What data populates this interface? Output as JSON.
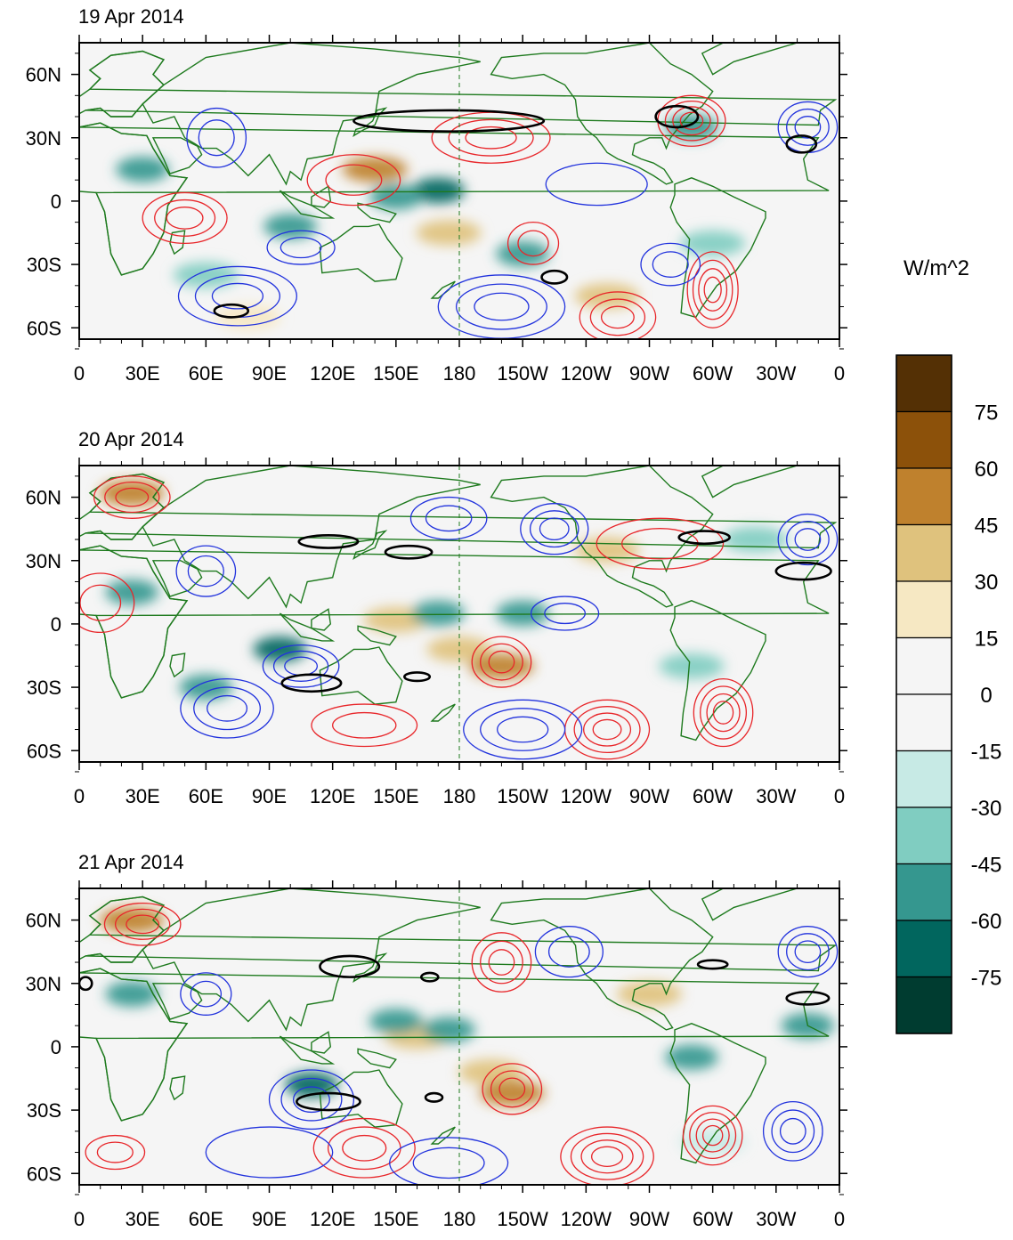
{
  "figure": {
    "units": "W/m^2",
    "x_ticks": [
      "0",
      "30E",
      "60E",
      "90E",
      "120E",
      "150E",
      "180",
      "150W",
      "120W",
      "90W",
      "60W",
      "30W",
      "0"
    ],
    "y_ticks": [
      "60N",
      "30N",
      "0",
      "30S",
      "60S"
    ],
    "panels": [
      {
        "title": "19 Apr 2014"
      },
      {
        "title": "20 Apr 2014"
      },
      {
        "title": "21 Apr 2014"
      }
    ],
    "colorbar": {
      "labels": [
        "75",
        "60",
        "45",
        "30",
        "15",
        "0",
        "-15",
        "-30",
        "-45",
        "-60",
        "-75"
      ],
      "colors": [
        "#543005",
        "#8c510a",
        "#bf812d",
        "#dfc27d",
        "#f6e8c3",
        "#f5f5f5",
        "#f5f5f5",
        "#c7eae5",
        "#80cdc1",
        "#35978f",
        "#01665e",
        "#003c30"
      ]
    },
    "style": {
      "coast_color": "#1e7a1e",
      "positive_contour": "#e8262a",
      "negative_contour": "#2233dd",
      "threshold_contour": "#000000"
    }
  },
  "chart_data": {
    "type": "heatmap",
    "variable": "anomaly field with contour overlays",
    "units": "W/m^2",
    "x_axis": {
      "range": [
        0,
        360
      ],
      "ticks": [
        "0",
        "30E",
        "60E",
        "90E",
        "120E",
        "150E",
        "180",
        "150W",
        "120W",
        "90W",
        "60W",
        "30W",
        "0"
      ]
    },
    "y_axis": {
      "range": [
        -75,
        75
      ],
      "ticks": [
        "60N",
        "30N",
        "0",
        "30S",
        "60S"
      ]
    },
    "levels": [
      -75,
      -60,
      -45,
      -30,
      -15,
      0,
      15,
      30,
      45,
      60,
      75
    ],
    "panels": [
      {
        "title": "19 Apr 2014",
        "shading": [
          {
            "lon": 140,
            "lat": 15,
            "val": 45
          },
          {
            "lon": 170,
            "lat": 5,
            "val": -75
          },
          {
            "lon": 150,
            "lat": 2,
            "val": -60
          },
          {
            "lon": 100,
            "lat": -12,
            "val": -60
          },
          {
            "lon": 30,
            "lat": 15,
            "val": -60
          },
          {
            "lon": 175,
            "lat": -15,
            "val": 30
          },
          {
            "lon": 210,
            "lat": -25,
            "val": -60
          },
          {
            "lon": 300,
            "lat": -20,
            "val": -45
          },
          {
            "lon": 290,
            "lat": 35,
            "val": -60
          },
          {
            "lon": 60,
            "lat": -35,
            "val": -45
          },
          {
            "lon": 250,
            "lat": -45,
            "val": 30
          },
          {
            "lon": 80,
            "lat": -55,
            "val": 20
          }
        ],
        "contours": [
          {
            "sign": "pos",
            "lon": 195,
            "lat": 30,
            "rx": 28,
            "ry": 12,
            "n": 3
          },
          {
            "sign": "pos",
            "lon": 290,
            "lat": 38,
            "rx": 16,
            "ry": 12,
            "n": 4
          },
          {
            "sign": "pos",
            "lon": 300,
            "lat": -42,
            "rx": 12,
            "ry": 18,
            "n": 4
          },
          {
            "sign": "pos",
            "lon": 215,
            "lat": -20,
            "rx": 12,
            "ry": 10,
            "n": 2
          },
          {
            "sign": "pos",
            "lon": 255,
            "lat": -55,
            "rx": 18,
            "ry": 12,
            "n": 3
          },
          {
            "sign": "pos",
            "lon": 50,
            "lat": -8,
            "rx": 20,
            "ry": 12,
            "n": 3
          },
          {
            "sign": "pos",
            "lon": 130,
            "lat": 10,
            "rx": 22,
            "ry": 12,
            "n": 2
          },
          {
            "sign": "neg",
            "lon": 75,
            "lat": -45,
            "rx": 28,
            "ry": 14,
            "n": 3
          },
          {
            "sign": "neg",
            "lon": 200,
            "lat": -50,
            "rx": 30,
            "ry": 15,
            "n": 3
          },
          {
            "sign": "neg",
            "lon": 280,
            "lat": -30,
            "rx": 14,
            "ry": 10,
            "n": 2
          },
          {
            "sign": "neg",
            "lon": 65,
            "lat": 30,
            "rx": 14,
            "ry": 14,
            "n": 2
          },
          {
            "sign": "neg",
            "lon": 345,
            "lat": 35,
            "rx": 14,
            "ry": 12,
            "n": 3
          },
          {
            "sign": "neg",
            "lon": 245,
            "lat": 8,
            "rx": 24,
            "ry": 10,
            "n": 1
          },
          {
            "sign": "neg",
            "lon": 105,
            "lat": -22,
            "rx": 16,
            "ry": 8,
            "n": 2
          }
        ],
        "threshold_contours": [
          {
            "lon": 175,
            "lat": 38,
            "rx": 45,
            "ry": 5
          },
          {
            "lon": 283,
            "lat": 40,
            "rx": 10,
            "ry": 5
          },
          {
            "lon": 342,
            "lat": 27,
            "rx": 7,
            "ry": 4
          },
          {
            "lon": 72,
            "lat": -52,
            "rx": 8,
            "ry": 3
          },
          {
            "lon": 225,
            "lat": -36,
            "rx": 6,
            "ry": 3
          }
        ]
      },
      {
        "title": "20 Apr 2014",
        "shading": [
          {
            "lon": 180,
            "lat": -12,
            "val": 30
          },
          {
            "lon": 200,
            "lat": -20,
            "val": 45
          },
          {
            "lon": 150,
            "lat": 2,
            "val": 30
          },
          {
            "lon": 170,
            "lat": 5,
            "val": -60
          },
          {
            "lon": 210,
            "lat": 5,
            "val": -60
          },
          {
            "lon": 95,
            "lat": -12,
            "val": -75
          },
          {
            "lon": 25,
            "lat": 15,
            "val": -60
          },
          {
            "lon": 290,
            "lat": -20,
            "val": -45
          },
          {
            "lon": 320,
            "lat": 40,
            "val": -45
          },
          {
            "lon": 60,
            "lat": -30,
            "val": -60
          },
          {
            "lon": 25,
            "lat": 62,
            "val": 45
          },
          {
            "lon": 250,
            "lat": 35,
            "val": 30
          }
        ],
        "contours": [
          {
            "sign": "pos",
            "lon": 25,
            "lat": 60,
            "rx": 18,
            "ry": 10,
            "n": 3
          },
          {
            "sign": "pos",
            "lon": 200,
            "lat": -18,
            "rx": 14,
            "ry": 12,
            "n": 3
          },
          {
            "sign": "pos",
            "lon": 250,
            "lat": -50,
            "rx": 20,
            "ry": 14,
            "n": 4
          },
          {
            "sign": "pos",
            "lon": 305,
            "lat": -42,
            "rx": 14,
            "ry": 16,
            "n": 4
          },
          {
            "sign": "pos",
            "lon": 135,
            "lat": -48,
            "rx": 25,
            "ry": 10,
            "n": 2
          },
          {
            "sign": "pos",
            "lon": 10,
            "lat": 10,
            "rx": 16,
            "ry": 14,
            "n": 2
          },
          {
            "sign": "pos",
            "lon": 275,
            "lat": 38,
            "rx": 30,
            "ry": 12,
            "n": 2
          },
          {
            "sign": "neg",
            "lon": 70,
            "lat": -40,
            "rx": 22,
            "ry": 14,
            "n": 3
          },
          {
            "sign": "neg",
            "lon": 210,
            "lat": -50,
            "rx": 28,
            "ry": 14,
            "n": 3
          },
          {
            "sign": "neg",
            "lon": 225,
            "lat": 45,
            "rx": 16,
            "ry": 12,
            "n": 3
          },
          {
            "sign": "neg",
            "lon": 105,
            "lat": -20,
            "rx": 18,
            "ry": 10,
            "n": 3
          },
          {
            "sign": "neg",
            "lon": 60,
            "lat": 25,
            "rx": 14,
            "ry": 12,
            "n": 2
          },
          {
            "sign": "neg",
            "lon": 345,
            "lat": 40,
            "rx": 14,
            "ry": 12,
            "n": 3
          },
          {
            "sign": "neg",
            "lon": 175,
            "lat": 50,
            "rx": 18,
            "ry": 10,
            "n": 2
          },
          {
            "sign": "neg",
            "lon": 230,
            "lat": 5,
            "rx": 16,
            "ry": 8,
            "n": 2
          }
        ],
        "threshold_contours": [
          {
            "lon": 118,
            "lat": 39,
            "rx": 14,
            "ry": 3
          },
          {
            "lon": 156,
            "lat": 34,
            "rx": 11,
            "ry": 3
          },
          {
            "lon": 296,
            "lat": 41,
            "rx": 12,
            "ry": 3
          },
          {
            "lon": 343,
            "lat": 25,
            "rx": 13,
            "ry": 4
          },
          {
            "lon": 110,
            "lat": -28,
            "rx": 14,
            "ry": 4
          },
          {
            "lon": 160,
            "lat": -25,
            "rx": 6,
            "ry": 2
          }
        ]
      },
      {
        "title": "21 Apr 2014",
        "shading": [
          {
            "lon": 160,
            "lat": 5,
            "val": 30
          },
          {
            "lon": 195,
            "lat": -12,
            "val": 30
          },
          {
            "lon": 205,
            "lat": -22,
            "val": 45
          },
          {
            "lon": 175,
            "lat": 8,
            "val": -60
          },
          {
            "lon": 150,
            "lat": 12,
            "val": -60
          },
          {
            "lon": 110,
            "lat": -18,
            "val": -75
          },
          {
            "lon": 25,
            "lat": 25,
            "val": -60
          },
          {
            "lon": 290,
            "lat": -5,
            "val": -60
          },
          {
            "lon": 345,
            "lat": 10,
            "val": -60
          },
          {
            "lon": 25,
            "lat": 60,
            "val": 45
          },
          {
            "lon": 270,
            "lat": 25,
            "val": 30
          },
          {
            "lon": 300,
            "lat": -45,
            "val": -30
          }
        ],
        "contours": [
          {
            "sign": "pos",
            "lon": 30,
            "lat": 58,
            "rx": 18,
            "ry": 10,
            "n": 3
          },
          {
            "sign": "pos",
            "lon": 205,
            "lat": -20,
            "rx": 14,
            "ry": 12,
            "n": 3
          },
          {
            "sign": "pos",
            "lon": 135,
            "lat": -48,
            "rx": 24,
            "ry": 14,
            "n": 3
          },
          {
            "sign": "pos",
            "lon": 250,
            "lat": -52,
            "rx": 22,
            "ry": 14,
            "n": 4
          },
          {
            "sign": "pos",
            "lon": 300,
            "lat": -42,
            "rx": 14,
            "ry": 14,
            "n": 4
          },
          {
            "sign": "pos",
            "lon": 17,
            "lat": -50,
            "rx": 14,
            "ry": 8,
            "n": 2
          },
          {
            "sign": "pos",
            "lon": 200,
            "lat": 40,
            "rx": 14,
            "ry": 14,
            "n": 3
          },
          {
            "sign": "neg",
            "lon": 110,
            "lat": -25,
            "rx": 20,
            "ry": 14,
            "n": 3
          },
          {
            "sign": "neg",
            "lon": 338,
            "lat": -40,
            "rx": 14,
            "ry": 14,
            "n": 3
          },
          {
            "sign": "neg",
            "lon": 232,
            "lat": 45,
            "rx": 16,
            "ry": 12,
            "n": 2
          },
          {
            "sign": "neg",
            "lon": 345,
            "lat": 45,
            "rx": 14,
            "ry": 12,
            "n": 3
          },
          {
            "sign": "neg",
            "lon": 60,
            "lat": 25,
            "rx": 12,
            "ry": 10,
            "n": 2
          },
          {
            "sign": "neg",
            "lon": 90,
            "lat": -50,
            "rx": 30,
            "ry": 12,
            "n": 1
          },
          {
            "sign": "neg",
            "lon": 175,
            "lat": -55,
            "rx": 28,
            "ry": 12,
            "n": 2
          }
        ],
        "threshold_contours": [
          {
            "lon": 128,
            "lat": 38,
            "rx": 14,
            "ry": 5
          },
          {
            "lon": 166,
            "lat": 33,
            "rx": 4,
            "ry": 2
          },
          {
            "lon": 300,
            "lat": 39,
            "rx": 7,
            "ry": 2
          },
          {
            "lon": 345,
            "lat": 23,
            "rx": 10,
            "ry": 3
          },
          {
            "lon": 118,
            "lat": -26,
            "rx": 15,
            "ry": 4
          },
          {
            "lon": 168,
            "lat": -24,
            "rx": 4,
            "ry": 2
          },
          {
            "lon": 3,
            "lat": 30,
            "rx": 3,
            "ry": 3
          }
        ]
      }
    ]
  }
}
